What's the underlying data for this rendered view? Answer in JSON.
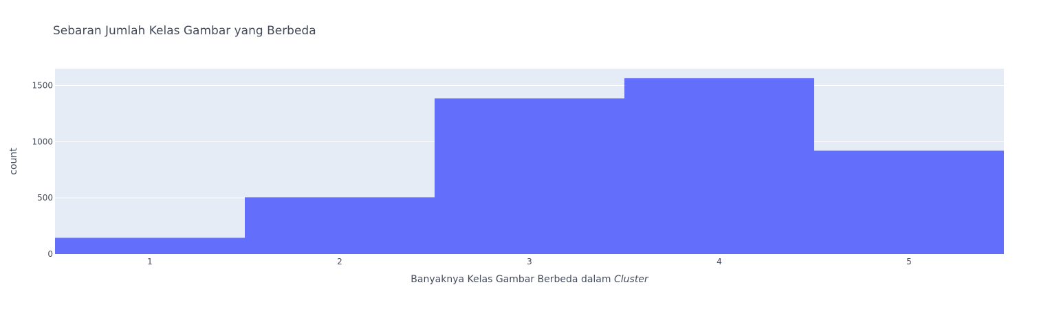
{
  "chart_data": {
    "type": "bar",
    "title": "Sebaran Jumlah Kelas Gambar yang Berbeda",
    "xlabel": {
      "text": "Banyaknya Kelas Gambar Berbeda dalam ",
      "italic_text": "Cluster"
    },
    "ylabel": "count",
    "categories": [
      "1",
      "2",
      "3",
      "4",
      "5"
    ],
    "values": [
      145,
      505,
      1385,
      1565,
      920
    ],
    "ylim": [
      0,
      1650
    ],
    "yticks": [
      0,
      500,
      1000,
      1500
    ],
    "grid": true,
    "legend": "none",
    "colors": {
      "bar": "#636efa",
      "plot_bg": "#e5ecf6",
      "grid": "#ffffff",
      "text": "#444c5c"
    }
  }
}
